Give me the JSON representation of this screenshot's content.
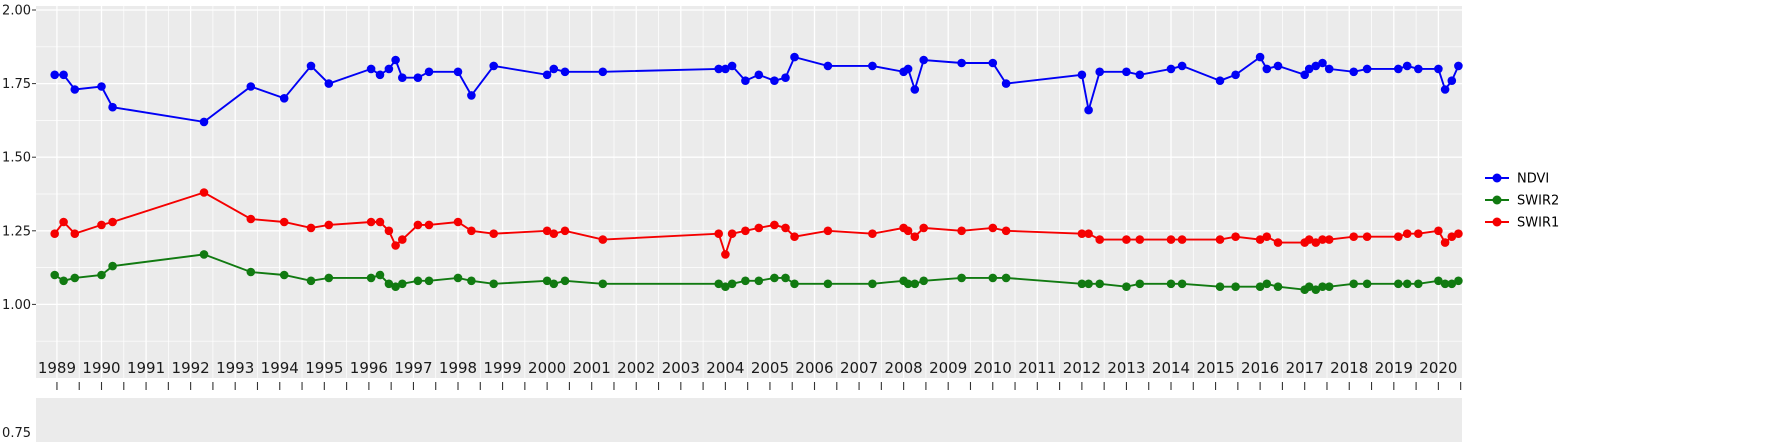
{
  "chart_data": {
    "type": "line",
    "title": "",
    "xlabel": "",
    "ylabel": "",
    "x_ticks": [
      1989,
      1990,
      1991,
      1992,
      1993,
      1994,
      1995,
      1996,
      1997,
      1998,
      1999,
      2000,
      2001,
      2002,
      2003,
      2004,
      2005,
      2006,
      2007,
      2008,
      2009,
      2010,
      2011,
      2012,
      2013,
      2014,
      2015,
      2016,
      2017,
      2018,
      2019,
      2020
    ],
    "y_tick_labels": [
      "2.00",
      "1.75",
      "1.50",
      "1.25",
      "1.00",
      "0.75"
    ],
    "y_tick_values": [
      2.0,
      1.75,
      1.5,
      1.25,
      1.0,
      0.75
    ],
    "ylim": [
      0.75,
      2.0
    ],
    "xlim": [
      1988.53,
      2020.53
    ],
    "grid": "major+minor",
    "legend_position": "right",
    "colors": {
      "panel_background": "#EBEBEB",
      "gridline": "#FFFFFF",
      "tick": "#333333",
      "axis_text": "#1A1A1A"
    },
    "x": [
      1988.95,
      1989.15,
      1989.4,
      1990.0,
      1990.25,
      1992.3,
      1993.35,
      1994.1,
      1994.7,
      1995.1,
      1996.05,
      1996.25,
      1996.45,
      1996.6,
      1996.75,
      1997.1,
      1997.35,
      1998.0,
      1998.3,
      1998.8,
      2000.0,
      2000.15,
      2000.4,
      2001.25,
      2003.85,
      2004.0,
      2004.15,
      2004.45,
      2004.75,
      2005.1,
      2005.35,
      2005.55,
      2006.3,
      2007.3,
      2008.0,
      2008.1,
      2008.25,
      2008.45,
      2009.3,
      2010.0,
      2010.3,
      2012.0,
      2012.15,
      2012.4,
      2013.0,
      2013.3,
      2014.0,
      2014.25,
      2015.1,
      2015.45,
      2016.0,
      2016.15,
      2016.4,
      2017.0,
      2017.1,
      2017.25,
      2017.4,
      2017.55,
      2018.1,
      2018.4,
      2019.1,
      2019.3,
      2019.55,
      2020.0,
      2020.15,
      2020.3,
      2020.45
    ],
    "series": [
      {
        "name": "NDVI",
        "color": "#0000F5",
        "values": [
          1.78,
          1.78,
          1.73,
          1.74,
          1.67,
          1.62,
          1.74,
          1.7,
          1.81,
          1.75,
          1.8,
          1.78,
          1.8,
          1.83,
          1.77,
          1.77,
          1.79,
          1.79,
          1.71,
          1.81,
          1.78,
          1.8,
          1.79,
          1.79,
          1.8,
          1.8,
          1.81,
          1.76,
          1.78,
          1.76,
          1.77,
          1.84,
          1.81,
          1.81,
          1.79,
          1.8,
          1.73,
          1.83,
          1.82,
          1.82,
          1.75,
          1.78,
          1.66,
          1.79,
          1.79,
          1.78,
          1.8,
          1.81,
          1.76,
          1.78,
          1.84,
          1.8,
          1.81,
          1.78,
          1.8,
          1.81,
          1.82,
          1.8,
          1.79,
          1.8,
          1.8,
          1.81,
          1.8,
          1.8,
          1.73,
          1.76,
          1.81
        ]
      },
      {
        "name": "SWIR2",
        "color": "#117A11",
        "values": [
          1.1,
          1.08,
          1.09,
          1.1,
          1.13,
          1.17,
          1.11,
          1.1,
          1.08,
          1.09,
          1.09,
          1.1,
          1.07,
          1.06,
          1.07,
          1.08,
          1.08,
          1.09,
          1.08,
          1.07,
          1.08,
          1.07,
          1.08,
          1.07,
          1.07,
          1.06,
          1.07,
          1.08,
          1.08,
          1.09,
          1.09,
          1.07,
          1.07,
          1.07,
          1.08,
          1.07,
          1.07,
          1.08,
          1.09,
          1.09,
          1.09,
          1.07,
          1.07,
          1.07,
          1.06,
          1.07,
          1.07,
          1.07,
          1.06,
          1.06,
          1.06,
          1.07,
          1.06,
          1.05,
          1.06,
          1.05,
          1.06,
          1.06,
          1.07,
          1.07,
          1.07,
          1.07,
          1.07,
          1.08,
          1.07,
          1.07,
          1.08
        ]
      },
      {
        "name": "SWIR1",
        "color": "#F50000",
        "values": [
          1.24,
          1.28,
          1.24,
          1.27,
          1.28,
          1.38,
          1.29,
          1.28,
          1.26,
          1.27,
          1.28,
          1.28,
          1.25,
          1.2,
          1.22,
          1.27,
          1.27,
          1.28,
          1.25,
          1.24,
          1.25,
          1.24,
          1.25,
          1.22,
          1.24,
          1.17,
          1.24,
          1.25,
          1.26,
          1.27,
          1.26,
          1.23,
          1.25,
          1.24,
          1.26,
          1.25,
          1.23,
          1.26,
          1.25,
          1.26,
          1.25,
          1.24,
          1.24,
          1.22,
          1.22,
          1.22,
          1.22,
          1.22,
          1.22,
          1.23,
          1.22,
          1.23,
          1.21,
          1.21,
          1.22,
          1.21,
          1.22,
          1.22,
          1.23,
          1.23,
          1.23,
          1.24,
          1.24,
          1.25,
          1.21,
          1.23,
          1.24
        ]
      }
    ]
  }
}
